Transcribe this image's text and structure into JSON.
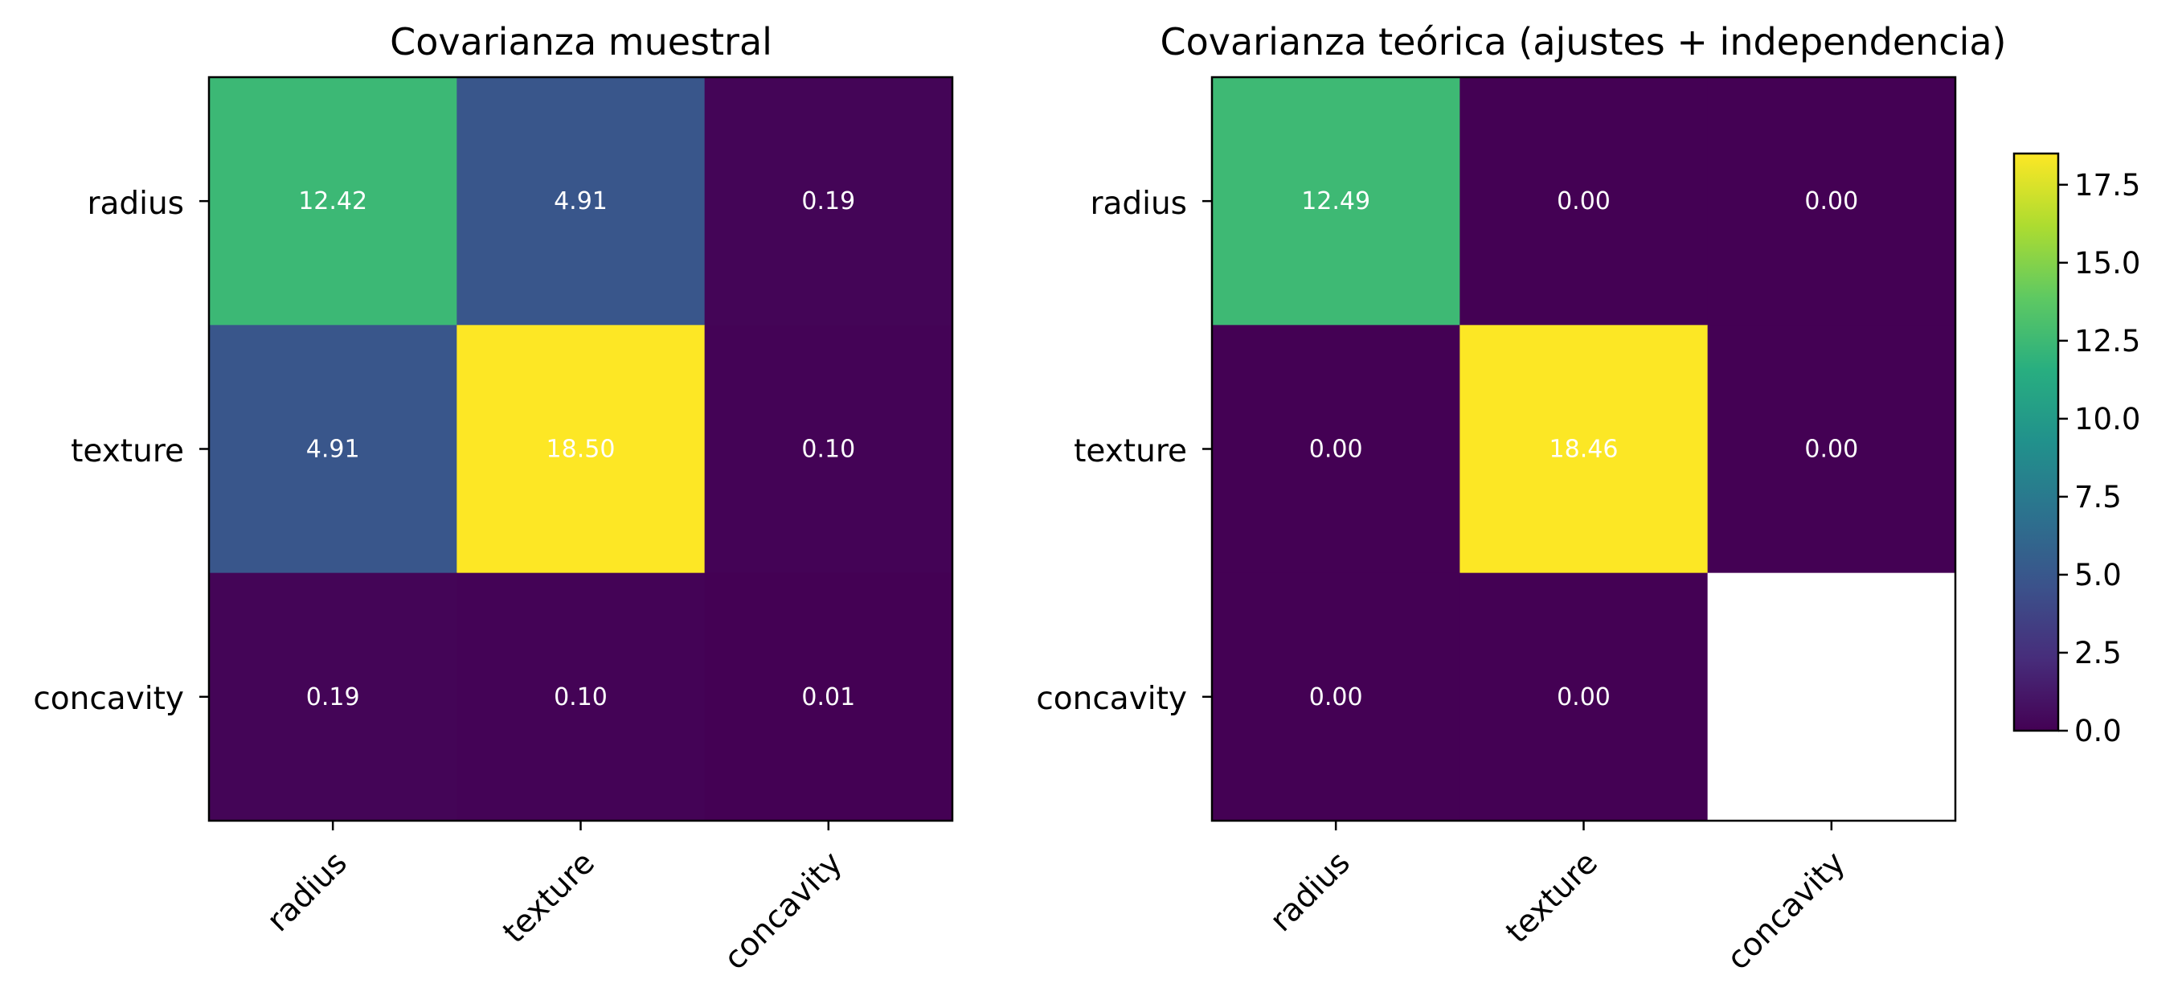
{
  "chart_data": [
    {
      "type": "heatmap",
      "title": "Covarianza muestral",
      "x_labels": [
        "radius",
        "texture",
        "concavity"
      ],
      "y_labels": [
        "radius",
        "texture",
        "concavity"
      ],
      "values": [
        [
          12.42,
          4.91,
          0.19
        ],
        [
          4.91,
          18.5,
          0.1
        ],
        [
          0.19,
          0.1,
          0.01
        ]
      ],
      "value_labels": [
        [
          "12.42",
          "4.91",
          "0.19"
        ],
        [
          "4.91",
          "18.50",
          "0.10"
        ],
        [
          "0.19",
          "0.10",
          "0.01"
        ]
      ],
      "colormap": "viridis",
      "xtick_rotation": "45 degrees",
      "grid": false
    },
    {
      "type": "heatmap",
      "title": "Covarianza teórica (ajustes + independencia)",
      "x_labels": [
        "radius",
        "texture",
        "concavity"
      ],
      "y_labels": [
        "radius",
        "texture",
        "concavity"
      ],
      "values": [
        [
          12.49,
          0.0,
          0.0
        ],
        [
          0.0,
          18.46,
          0.0
        ],
        [
          0.0,
          0.0,
          null
        ]
      ],
      "value_labels": [
        [
          "12.49",
          "0.00",
          "0.00"
        ],
        [
          "0.00",
          "18.46",
          "0.00"
        ],
        [
          "0.00",
          "0.00",
          ""
        ]
      ],
      "missing_cell_color": "#ffffff",
      "colormap": "viridis",
      "xtick_rotation": "45 degrees",
      "grid": false
    }
  ],
  "colorbar": {
    "min": 0.0,
    "max": 18.5,
    "ticks": [
      "0.0",
      "2.5",
      "5.0",
      "7.5",
      "10.0",
      "12.5",
      "15.0",
      "17.5"
    ],
    "placement": "right"
  }
}
